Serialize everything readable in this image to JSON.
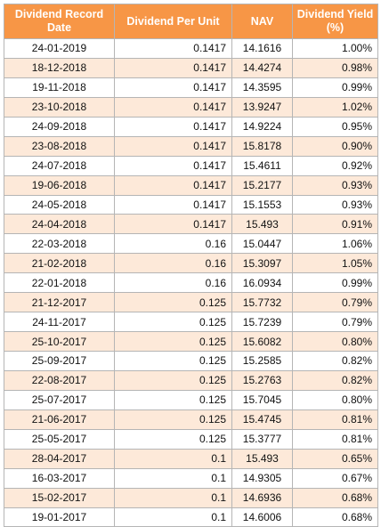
{
  "table": {
    "headers": [
      "Dividend Record Date",
      "Dividend Per Unit",
      "NAV",
      "Dividend Yield (%)"
    ],
    "rows": [
      [
        "24-01-2019",
        "0.1417",
        "14.1616",
        "1.00%"
      ],
      [
        "18-12-2018",
        "0.1417",
        "14.4274",
        "0.98%"
      ],
      [
        "19-11-2018",
        "0.1417",
        "14.3595",
        "0.99%"
      ],
      [
        "23-10-2018",
        "0.1417",
        "13.9247",
        "1.02%"
      ],
      [
        "24-09-2018",
        "0.1417",
        "14.9224",
        "0.95%"
      ],
      [
        "23-08-2018",
        "0.1417",
        "15.8178",
        "0.90%"
      ],
      [
        "24-07-2018",
        "0.1417",
        "15.4611",
        "0.92%"
      ],
      [
        "19-06-2018",
        "0.1417",
        "15.2177",
        "0.93%"
      ],
      [
        "24-05-2018",
        "0.1417",
        "15.1553",
        "0.93%"
      ],
      [
        "24-04-2018",
        "0.1417",
        "15.493",
        "0.91%"
      ],
      [
        "22-03-2018",
        "0.16",
        "15.0447",
        "1.06%"
      ],
      [
        "21-02-2018",
        "0.16",
        "15.3097",
        "1.05%"
      ],
      [
        "22-01-2018",
        "0.16",
        "16.0934",
        "0.99%"
      ],
      [
        "21-12-2017",
        "0.125",
        "15.7732",
        "0.79%"
      ],
      [
        "24-11-2017",
        "0.125",
        "15.7239",
        "0.79%"
      ],
      [
        "25-10-2017",
        "0.125",
        "15.6082",
        "0.80%"
      ],
      [
        "25-09-2017",
        "0.125",
        "15.2585",
        "0.82%"
      ],
      [
        "22-08-2017",
        "0.125",
        "15.2763",
        "0.82%"
      ],
      [
        "25-07-2017",
        "0.125",
        "15.7045",
        "0.80%"
      ],
      [
        "21-06-2017",
        "0.125",
        "15.4745",
        "0.81%"
      ],
      [
        "25-05-2017",
        "0.125",
        "15.3777",
        "0.81%"
      ],
      [
        "28-04-2017",
        "0.1",
        "15.493",
        "0.65%"
      ],
      [
        "16-03-2017",
        "0.1",
        "14.9305",
        "0.67%"
      ],
      [
        "15-02-2017",
        "0.1",
        "14.6936",
        "0.68%"
      ],
      [
        "19-01-2017",
        "0.1",
        "14.6006",
        "0.68%"
      ]
    ]
  },
  "colors": {
    "header_bg": "#f79646",
    "header_text": "#ffffff",
    "band_row": "#fde9d9",
    "plain_row": "#ffffff",
    "grid_line": "#b5b5b5"
  }
}
